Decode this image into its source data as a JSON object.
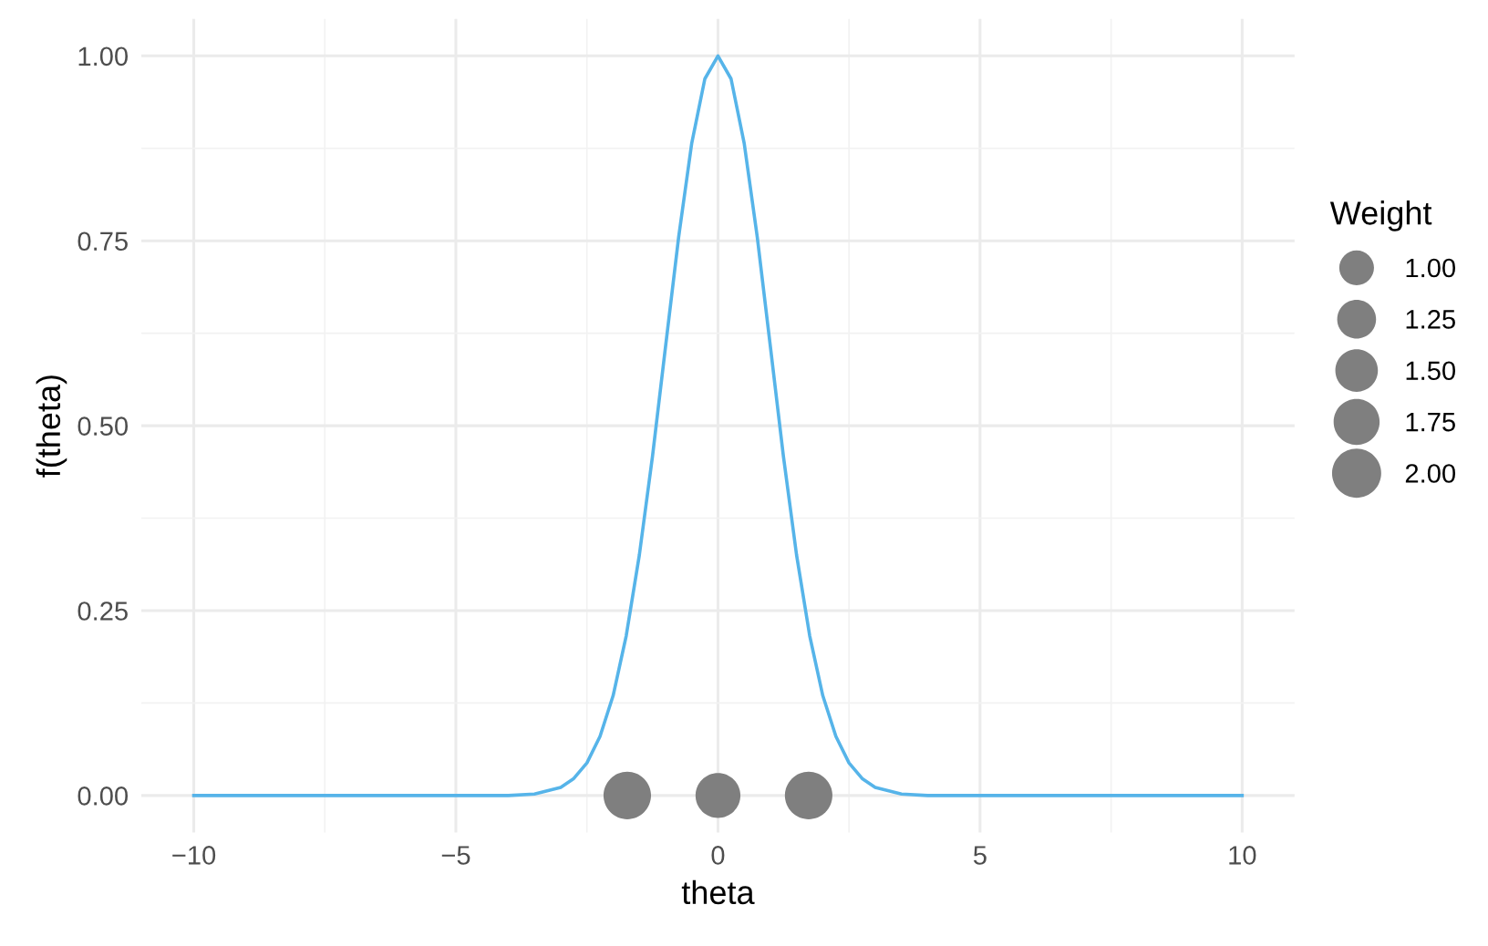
{
  "chart_data": {
    "type": "line",
    "xlabel": "theta",
    "ylabel": "f(theta)",
    "legend_title": "Weight",
    "xlim": [
      -11,
      11
    ],
    "ylim": [
      -0.05,
      1.05
    ],
    "xticks": [
      {
        "value": -10,
        "label": "−10"
      },
      {
        "value": -5,
        "label": "−5"
      },
      0,
      5,
      10
    ],
    "yticks": [
      {
        "value": 0,
        "label": "0.00"
      },
      {
        "value": 0.25,
        "label": "0.25"
      },
      {
        "value": 0.5,
        "label": "0.50"
      },
      {
        "value": 0.75,
        "label": "0.75"
      },
      {
        "value": 1,
        "label": "1.00"
      }
    ],
    "grid": true,
    "line_style": "solid",
    "size_legend": [
      {
        "value": 1,
        "label": "1.00"
      },
      {
        "value": 1.25,
        "label": "1.25"
      },
      {
        "value": 1.5,
        "label": "1.50"
      },
      {
        "value": 1.75,
        "label": "1.75"
      },
      {
        "value": 2,
        "label": "2.00"
      }
    ],
    "series": [
      {
        "color": "#56b4e9",
        "x": [
          -10,
          -7.5,
          -5,
          -4,
          -3.5,
          -3,
          -2.75,
          -2.5,
          -2.25,
          -2,
          -1.75,
          -1.5,
          -1.25,
          -1,
          -0.75,
          -0.5,
          -0.25,
          0,
          0.25,
          0.5,
          0.75,
          1,
          1.25,
          1.5,
          1.75,
          2,
          2.25,
          2.5,
          2.75,
          3,
          3.5,
          4,
          5,
          7.5,
          10
        ],
        "values": [
          0,
          0,
          0,
          0,
          0.002,
          0.011,
          0.023,
          0.044,
          0.08,
          0.135,
          0.216,
          0.325,
          0.458,
          0.607,
          0.755,
          0.882,
          0.969,
          1,
          0.969,
          0.882,
          0.755,
          0.607,
          0.458,
          0.325,
          0.216,
          0.135,
          0.08,
          0.044,
          0.023,
          0.011,
          0.002,
          0,
          0,
          0,
          0
        ]
      },
      {
        "type": "bubble",
        "color": "#7f7f7f",
        "x": [
          -1.73,
          0,
          1.73
        ],
        "values": [
          0,
          0,
          0
        ],
        "sizes": [
          1.87,
          1.67,
          1.87
        ]
      }
    ]
  }
}
